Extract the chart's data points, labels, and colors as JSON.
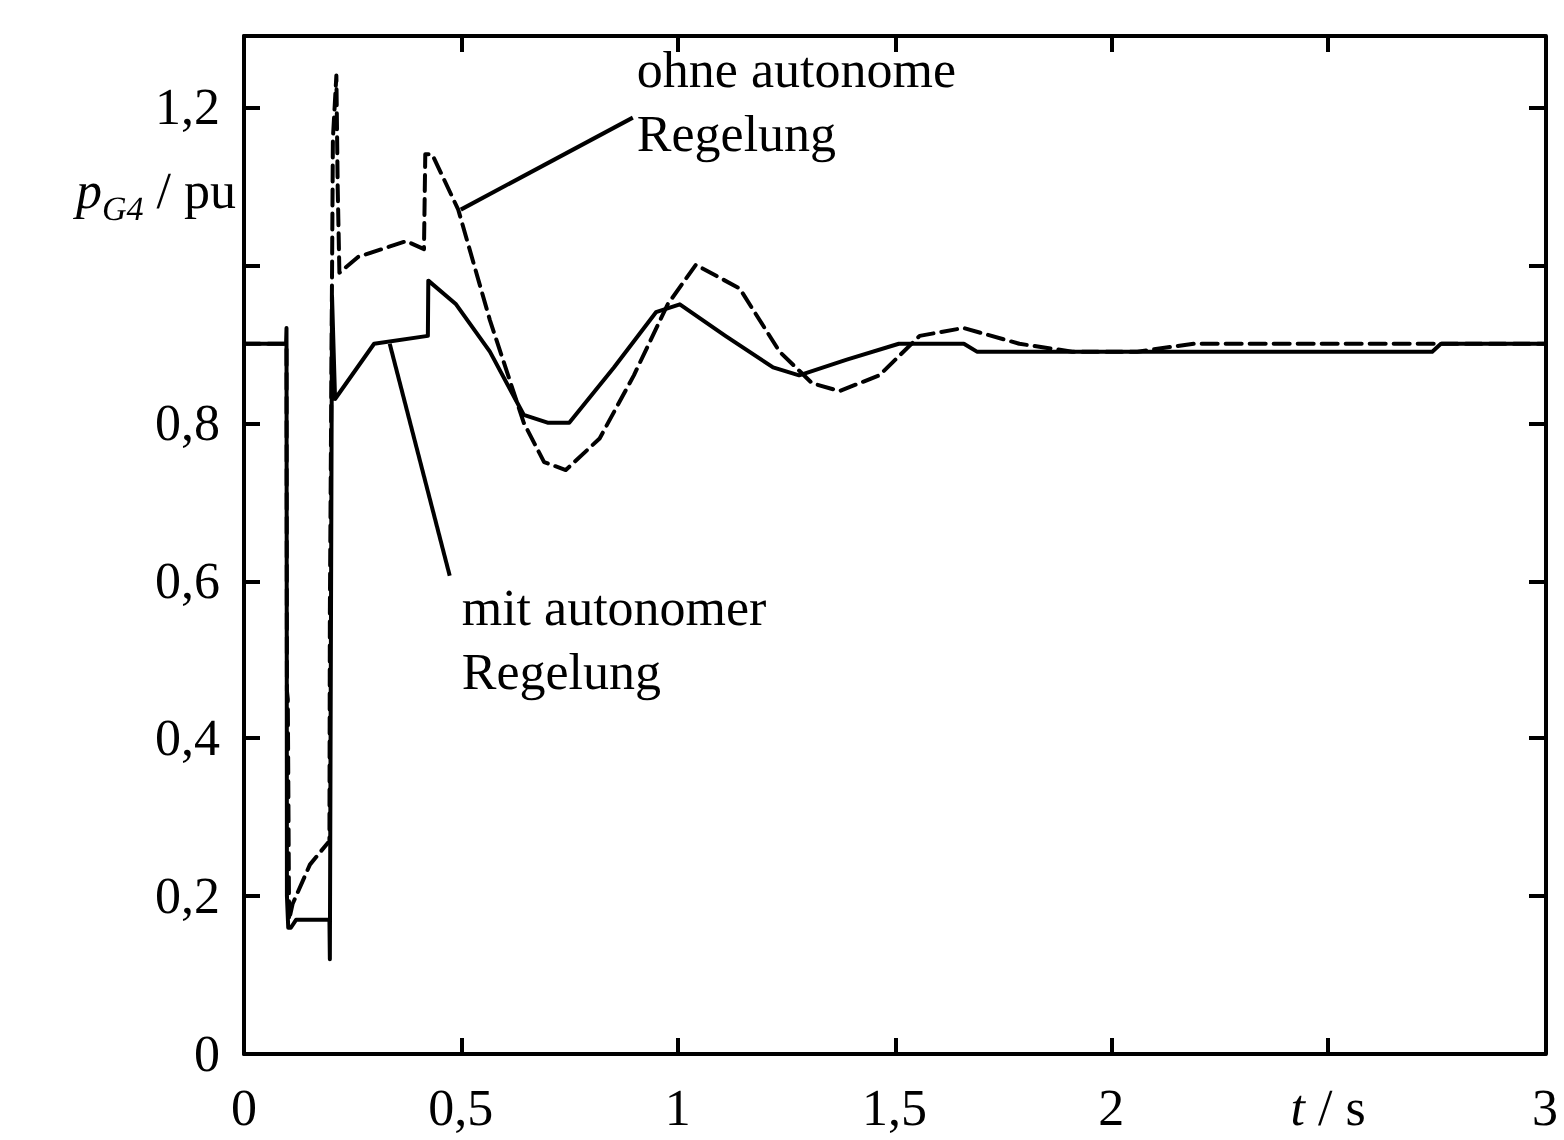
{
  "chart_data": {
    "type": "line",
    "xlabel": "t / s",
    "ylabel": "p$_{G4}$ / pu",
    "xlim": [
      0,
      3
    ],
    "ylim": [
      0,
      1.29
    ],
    "xticks": [
      0,
      {
        "value": 0.5,
        "label": "0,5"
      },
      1,
      {
        "value": 1.5,
        "label": "1,5"
      },
      2,
      {
        "value": 2.5,
        "label": null
      },
      3
    ],
    "yticks": [
      0,
      {
        "value": 0.2,
        "label": "0,2"
      },
      {
        "value": 0.4,
        "label": "0,4"
      },
      {
        "value": 0.6,
        "label": "0,6"
      },
      {
        "value": 0.8,
        "label": "0,8"
      },
      {
        "value": 1.0,
        "label": null
      },
      {
        "value": 1.2,
        "label": "1,2"
      }
    ],
    "grid": false,
    "marker": "none",
    "series": [
      {
        "color": "#000000",
        "line_style": "solid",
        "x": [
          0,
          0.097,
          0.098,
          0.099,
          0.102,
          0.108,
          0.12,
          0.197,
          0.198,
          0.203,
          0.21,
          0.3,
          0.424,
          0.425,
          0.489,
          0.567,
          0.645,
          0.7,
          0.75,
          0.853,
          0.95,
          1.005,
          1.11,
          1.22,
          1.28,
          1.39,
          1.51,
          1.66,
          1.69,
          1.83,
          2.03,
          2.42,
          2.43,
          2.74,
          2.76,
          3
        ],
        "values": [
          0.9,
          0.9,
          0.92,
          0.2,
          0.16,
          0.16,
          0.17,
          0.17,
          0.12,
          0.96,
          0.83,
          0.9,
          0.91,
          0.98,
          0.95,
          0.89,
          0.81,
          0.8,
          0.8,
          0.87,
          0.94,
          0.95,
          0.91,
          0.87,
          0.86,
          0.88,
          0.9,
          0.9,
          0.89,
          0.89,
          0.89,
          0.89,
          0.89,
          0.89,
          0.9,
          0.9
        ]
      },
      {
        "color": "#000000",
        "line_style": "dashed",
        "x": [
          0,
          0.098,
          0.099,
          0.101,
          0.104,
          0.112,
          0.152,
          0.197,
          0.198,
          0.205,
          0.213,
          0.216,
          0.22,
          0.263,
          0.374,
          0.415,
          0.418,
          0.434,
          0.494,
          0.567,
          0.645,
          0.692,
          0.742,
          0.82,
          0.899,
          0.977,
          1.042,
          1.143,
          1.235,
          1.31,
          1.373,
          1.465,
          1.558,
          1.659,
          1.788,
          1.91,
          2.06,
          2.19,
          3
        ],
        "values": [
          0.9,
          0.9,
          0.46,
          0.45,
          0.17,
          0.19,
          0.24,
          0.27,
          0.56,
          1.16,
          1.24,
          1.1,
          0.99,
          1.01,
          1.03,
          1.02,
          1.14,
          1.14,
          1.07,
          0.93,
          0.8,
          0.75,
          0.74,
          0.78,
          0.86,
          0.95,
          1.0,
          0.97,
          0.89,
          0.85,
          0.84,
          0.86,
          0.91,
          0.92,
          0.9,
          0.89,
          0.89,
          0.9,
          0.9
        ]
      }
    ],
    "annotations": [
      {
        "text": "ohne autonome Regelung",
        "x": 0.5,
        "y": 1.07
      },
      {
        "text": "mit autonomer Regelung",
        "x": 0.336,
        "y": 0.9
      }
    ]
  }
}
